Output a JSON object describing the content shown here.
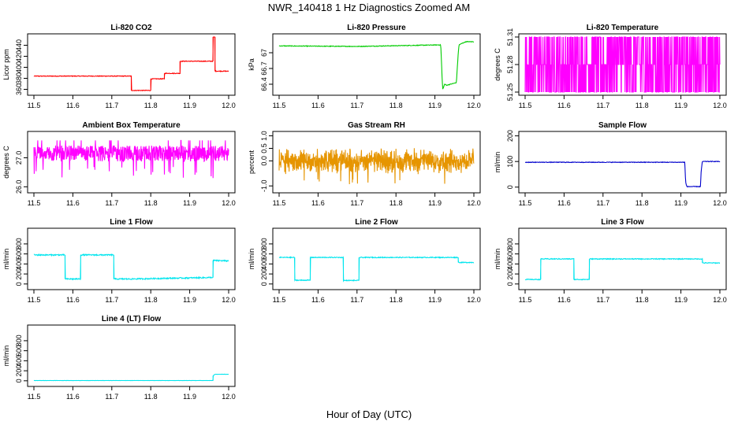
{
  "figure": {
    "title": "NWR_140418  1 Hz Diagnostics Zoomed AM",
    "xlabel": "Hour of Day (UTC)"
  },
  "chart_data": [
    {
      "type": "line",
      "id": "co2",
      "title": "Li-820 CO2",
      "ylabel": "Licor ppm",
      "color": "#ff0000",
      "xlim": [
        11.5,
        12.0
      ],
      "ylim": [
        355,
        455
      ],
      "xticks": [
        "11.5",
        "11.6",
        "11.7",
        "11.8",
        "11.9",
        "12.0"
      ],
      "yticks": [
        360,
        380,
        400,
        420,
        440
      ],
      "noise": 0.6,
      "series": [
        {
          "x": [
            11.5,
            11.75,
            11.75,
            11.8,
            11.8,
            11.835,
            11.835,
            11.875,
            11.875,
            11.96,
            11.96,
            11.965,
            11.965,
            12.0
          ],
          "y": [
            384,
            384,
            358,
            358,
            379,
            379,
            389,
            389,
            411,
            411,
            459,
            459,
            393,
            393
          ]
        }
      ]
    },
    {
      "type": "line",
      "id": "pressure",
      "title": "Li-820 Pressure",
      "ylabel": "kPa",
      "color": "#00cc00",
      "xlim": [
        11.5,
        12.0
      ],
      "ylim": [
        66.25,
        67.3
      ],
      "xticks": [
        "11.5",
        "11.6",
        "11.7",
        "11.8",
        "11.9",
        "12.0"
      ],
      "yticks": [
        66.4,
        66.7,
        67.0
      ],
      "noise": 0.006,
      "series": [
        {
          "x": [
            11.5,
            11.7,
            11.915,
            11.918,
            11.92,
            11.925,
            11.93,
            11.955,
            11.96,
            11.962,
            11.97,
            11.98,
            12.0
          ],
          "y": [
            67.13,
            67.12,
            67.15,
            66.6,
            66.3,
            66.4,
            66.38,
            66.43,
            67.0,
            67.15,
            67.18,
            67.21,
            67.21
          ]
        }
      ]
    },
    {
      "type": "line",
      "id": "licor-temp",
      "title": "Li-820 Temperature",
      "ylabel": "degrees C",
      "color": "#ff00ff",
      "xlim": [
        11.5,
        12.0
      ],
      "ylim": [
        51.25,
        51.31
      ],
      "xticks": [
        "11.5",
        "11.6",
        "11.7",
        "11.8",
        "11.9",
        "12.0"
      ],
      "yticks": [
        "51.25",
        "51.28",
        "51.31"
      ],
      "levels": [
        51.25,
        51.28,
        51.31
      ]
    },
    {
      "type": "line",
      "id": "ambient-temp",
      "title": "Ambient Box Temperature",
      "ylabel": "degrees C",
      "color": "#ff00ff",
      "xlim": [
        11.5,
        12.0
      ],
      "ylim": [
        25.9,
        27.8
      ],
      "xticks": [
        "11.5",
        "11.6",
        "11.7",
        "11.8",
        "11.9",
        "12.0"
      ],
      "yticks": [
        "26.0",
        "27.0"
      ],
      "levels": [
        26.8,
        27.0,
        27.2,
        27.4
      ]
    },
    {
      "type": "line",
      "id": "rh",
      "title": "Gas Stream RH",
      "ylabel": "percent",
      "color": "#e69500",
      "xlim": [
        11.5,
        12.0
      ],
      "ylim": [
        -1.15,
        1.05
      ],
      "xticks": [
        "11.5",
        "11.6",
        "11.7",
        "11.8",
        "11.9",
        "12.0"
      ],
      "yticks": [
        "-1.0",
        "0.0",
        "0.5",
        "1.0"
      ],
      "yticks_at": [
        -1.0,
        0.0,
        0.5,
        1.0
      ],
      "mean": 0.0,
      "spread": 0.45
    },
    {
      "type": "line",
      "id": "sample-flow",
      "title": "Sample Flow",
      "ylabel": "ml/min",
      "color": "#0000cc",
      "xlim": [
        11.5,
        12.0
      ],
      "ylim": [
        -10,
        205
      ],
      "xticks": [
        "11.5",
        "11.6",
        "11.7",
        "11.8",
        "11.9",
        "12.0"
      ],
      "yticks": [
        0,
        100,
        200
      ],
      "noise": 1.2,
      "series": [
        {
          "x": [
            11.5,
            11.91,
            11.91,
            11.912,
            11.915,
            11.95,
            11.952,
            11.955,
            12.0
          ],
          "y": [
            97,
            97,
            97,
            20,
            2,
            2,
            60,
            100,
            100
          ]
        }
      ]
    },
    {
      "type": "line",
      "id": "line1",
      "title": "Line 1 Flow",
      "ylabel": "ml/min",
      "color": "#00e5ee",
      "xlim": [
        11.5,
        12.0
      ],
      "ylim": [
        -50,
        1050
      ],
      "xticks": [
        "11.5",
        "11.6",
        "11.7",
        "11.8",
        "11.9",
        "12.0"
      ],
      "yticks": [
        0,
        200,
        400,
        600,
        800
      ],
      "noise": 12,
      "series": [
        {
          "x": [
            11.5,
            11.58,
            11.58,
            11.62,
            11.62,
            11.705,
            11.705,
            11.75,
            11.75,
            11.96,
            11.96,
            12.0
          ],
          "y": [
            580,
            580,
            100,
            100,
            580,
            580,
            100,
            100,
            100,
            130,
            470,
            460
          ]
        }
      ]
    },
    {
      "type": "line",
      "id": "line2",
      "title": "Line 2 Flow",
      "ylabel": "ml/min",
      "color": "#00e5ee",
      "xlim": [
        11.5,
        12.0
      ],
      "ylim": [
        -50,
        1050
      ],
      "xticks": [
        "11.5",
        "11.6",
        "11.7",
        "11.8",
        "11.9",
        "12.0"
      ],
      "yticks": [
        0,
        200,
        400,
        600,
        800
      ],
      "noise": 8,
      "series": [
        {
          "x": [
            11.5,
            11.54,
            11.54,
            11.58,
            11.58,
            11.665,
            11.665,
            11.705,
            11.705,
            11.96,
            11.96,
            12.0
          ],
          "y": [
            530,
            530,
            75,
            75,
            530,
            530,
            70,
            70,
            530,
            530,
            430,
            430
          ]
        }
      ]
    },
    {
      "type": "line",
      "id": "line3",
      "title": "Line 3 Flow",
      "ylabel": "ml/min",
      "color": "#00e5ee",
      "xlim": [
        11.5,
        12.0
      ],
      "ylim": [
        -50,
        1050
      ],
      "xticks": [
        "11.5",
        "11.6",
        "11.7",
        "11.8",
        "11.9",
        "12.0"
      ],
      "yticks": [
        0,
        200,
        400,
        600,
        800
      ],
      "noise": 8,
      "series": [
        {
          "x": [
            11.5,
            11.54,
            11.54,
            11.625,
            11.625,
            11.665,
            11.665,
            11.955,
            11.955,
            12.0
          ],
          "y": [
            90,
            90,
            500,
            500,
            90,
            90,
            500,
            500,
            420,
            420
          ]
        }
      ]
    },
    {
      "type": "line",
      "id": "line4",
      "title": "Line 4 (LT) Flow",
      "ylabel": "ml/min",
      "color": "#00e5ee",
      "xlim": [
        11.5,
        12.0
      ],
      "ylim": [
        -50,
        1050
      ],
      "xticks": [
        "11.5",
        "11.6",
        "11.7",
        "11.8",
        "11.9",
        "12.0"
      ],
      "yticks": [
        0,
        200,
        400,
        600,
        800
      ],
      "noise": 2,
      "series": [
        {
          "x": [
            11.5,
            11.96,
            11.96,
            11.965,
            12.0
          ],
          "y": [
            5,
            5,
            100,
            130,
            130
          ]
        }
      ]
    }
  ]
}
